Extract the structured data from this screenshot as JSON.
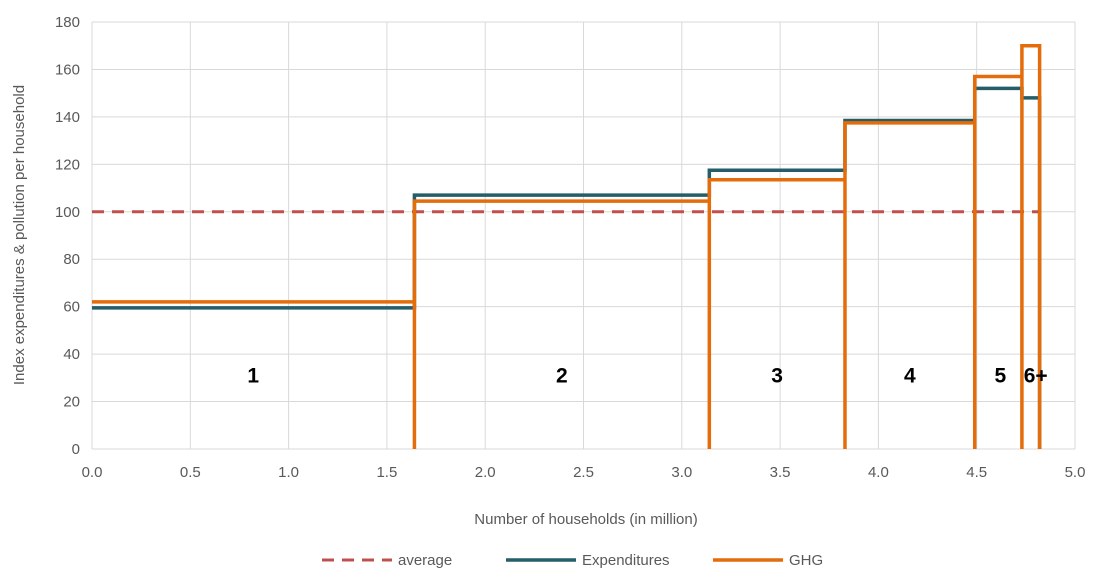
{
  "chart_data": {
    "type": "line",
    "subtype": "step",
    "title": "",
    "xlabel": "Number of households (in million)",
    "ylabel": "Index expenditures & pollution per household",
    "xlim": [
      0,
      5
    ],
    "ylim": [
      0,
      180
    ],
    "x_ticks": [
      0,
      0.5,
      1,
      1.5,
      2,
      2.5,
      3,
      3.5,
      4,
      4.5,
      5
    ],
    "x_tick_labels": [
      "0.0",
      "0.5",
      "1.0",
      "1.5",
      "2.0",
      "2.5",
      "3.0",
      "3.5",
      "4.0",
      "4.5",
      "5.0"
    ],
    "y_ticks": [
      0,
      20,
      40,
      60,
      80,
      100,
      120,
      140,
      160,
      180
    ],
    "y_tick_labels": [
      "0",
      "20",
      "40",
      "60",
      "80",
      "100",
      "120",
      "140",
      "160",
      "180"
    ],
    "grid": true,
    "legend_position": "bottom",
    "household_groups": [
      {
        "label": "1",
        "x_start": 0.0,
        "x_end": 1.64
      },
      {
        "label": "2",
        "x_start": 1.64,
        "x_end": 3.14
      },
      {
        "label": "3",
        "x_start": 3.14,
        "x_end": 3.83
      },
      {
        "label": "4",
        "x_start": 3.83,
        "x_end": 4.49
      },
      {
        "label": "5",
        "x_start": 4.49,
        "x_end": 4.73
      },
      {
        "label": "6+",
        "x_start": 4.73,
        "x_end": 4.82
      }
    ],
    "boundaries": [
      0.0,
      1.64,
      3.14,
      3.83,
      4.49,
      4.73,
      4.82
    ],
    "series": [
      {
        "name": "average",
        "style": "dashed",
        "color": "#c0504d",
        "x": [
          0.0,
          4.82
        ],
        "values": [
          100,
          100
        ]
      },
      {
        "name": "Expenditures",
        "style": "step",
        "color": "#255e69",
        "values": [
          59.5,
          107,
          117.5,
          138.5,
          152,
          148
        ]
      },
      {
        "name": "GHG",
        "style": "step",
        "color": "#e46c0a",
        "values": [
          62,
          104.5,
          113.5,
          137.5,
          157,
          170
        ]
      }
    ]
  },
  "colors": {
    "grid": "#d9d9d9",
    "text": "#595959",
    "group_label": "#000000"
  }
}
